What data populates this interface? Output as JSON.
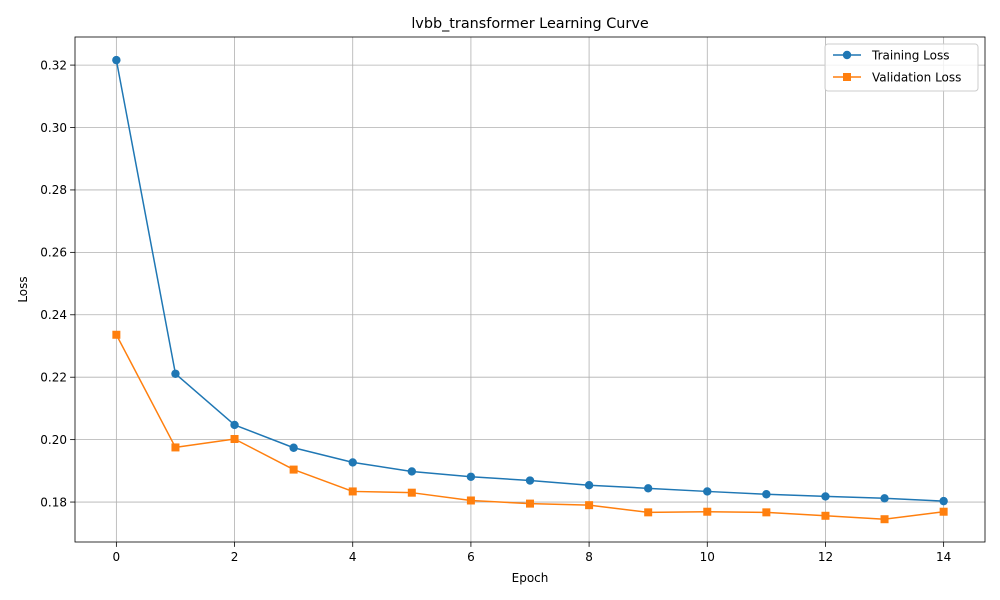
{
  "chart_data": {
    "type": "line",
    "title": "lvbb_transformer Learning Curve",
    "xlabel": "Epoch",
    "ylabel": "Loss",
    "xlim": [
      -0.7,
      14.7
    ],
    "ylim": [
      0.1672,
      0.329
    ],
    "xticks": [
      0,
      2,
      4,
      6,
      8,
      10,
      12,
      14
    ],
    "yticks": [
      0.18,
      0.2,
      0.22,
      0.24,
      0.26,
      0.28,
      0.3,
      0.32
    ],
    "xtick_labels": [
      "0",
      "2",
      "4",
      "6",
      "8",
      "10",
      "12",
      "14"
    ],
    "ytick_labels": [
      "0.18",
      "0.20",
      "0.22",
      "0.24",
      "0.26",
      "0.28",
      "0.30",
      "0.32"
    ],
    "grid": true,
    "legend_position": "top-right",
    "x": [
      0,
      1,
      2,
      3,
      4,
      5,
      6,
      7,
      8,
      9,
      10,
      11,
      12,
      13,
      14
    ],
    "series": [
      {
        "name": "Training Loss",
        "color": "#1f77b4",
        "marker": "circle",
        "values": [
          0.3216,
          0.2211,
          0.2047,
          0.1974,
          0.1927,
          0.1898,
          0.1881,
          0.1869,
          0.1854,
          0.1844,
          0.1834,
          0.1825,
          0.1818,
          0.1812,
          0.1803
        ]
      },
      {
        "name": "Validation Loss",
        "color": "#ff7f0e",
        "marker": "square",
        "values": [
          0.2336,
          0.1975,
          0.2002,
          0.1904,
          0.1834,
          0.183,
          0.1805,
          0.1795,
          0.179,
          0.1767,
          0.1769,
          0.1767,
          0.1756,
          0.1745,
          0.1769
        ]
      }
    ]
  }
}
